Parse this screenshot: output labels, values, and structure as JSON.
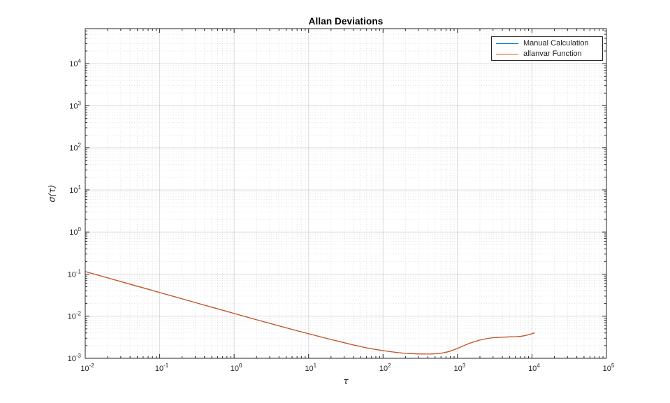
{
  "figure": {
    "background": "#ffffff",
    "axis_color": "#262626",
    "grid_major_color": "rgba(38,38,38,0.16)",
    "grid_minor_color": "rgba(38,38,38,0.13)"
  },
  "chart_data": {
    "type": "line",
    "title": "Allan Deviations",
    "xlabel": "τ",
    "ylabel": "σ(τ)",
    "xscale": "log",
    "yscale": "log",
    "xlim": [
      0.01,
      100000
    ],
    "ylim": [
      0.001,
      68000
    ],
    "x_tick_exponents": [
      -2,
      -1,
      0,
      1,
      2,
      3,
      4,
      5
    ],
    "y_tick_exponents": [
      -3,
      -2,
      -1,
      0,
      1,
      2,
      3,
      4
    ],
    "grid": true,
    "minor_grid": true,
    "legend": {
      "position": "northeast",
      "entries": [
        "Manual Calculation",
        "allanvar Function"
      ]
    },
    "series": [
      {
        "name": "Manual Calculation",
        "color": "#0072BD",
        "points": [
          [
            0.01,
            0.115
          ],
          [
            0.02,
            0.0815
          ],
          [
            0.04,
            0.0577
          ],
          [
            0.07,
            0.0437
          ],
          [
            0.1,
            0.0365
          ],
          [
            0.2,
            0.0259
          ],
          [
            0.4,
            0.0183
          ],
          [
            0.7,
            0.0139
          ],
          [
            1,
            0.0116
          ],
          [
            2,
            0.00825
          ],
          [
            4,
            0.00589
          ],
          [
            7,
            0.00452
          ],
          [
            10,
            0.00384
          ],
          [
            15,
            0.00318
          ],
          [
            20,
            0.0028
          ],
          [
            30,
            0.00235
          ],
          [
            40,
            0.00207
          ],
          [
            60,
            0.00177
          ],
          [
            80,
            0.00162
          ],
          [
            100,
            0.00152
          ],
          [
            150,
            0.00138
          ],
          [
            200,
            0.00131
          ],
          [
            300,
            0.00127
          ],
          [
            400,
            0.00126
          ],
          [
            500,
            0.00128
          ],
          [
            600,
            0.00132
          ],
          [
            700,
            0.00139
          ],
          [
            800,
            0.00148
          ],
          [
            1000,
            0.00172
          ],
          [
            1200,
            0.00198
          ],
          [
            1500,
            0.00232
          ],
          [
            2000,
            0.00272
          ],
          [
            2500,
            0.00295
          ],
          [
            3000,
            0.00308
          ],
          [
            4000,
            0.00318
          ],
          [
            5000,
            0.00322
          ],
          [
            6000,
            0.00326
          ],
          [
            7000,
            0.00332
          ],
          [
            8000,
            0.00345
          ],
          [
            9000,
            0.00363
          ],
          [
            10000,
            0.00385
          ],
          [
            10800,
            0.004
          ]
        ]
      },
      {
        "name": "allanvar Function",
        "color": "#D95319",
        "points": [
          [
            0.01,
            0.115
          ],
          [
            0.02,
            0.0815
          ],
          [
            0.04,
            0.0577
          ],
          [
            0.07,
            0.0437
          ],
          [
            0.1,
            0.0365
          ],
          [
            0.2,
            0.0259
          ],
          [
            0.4,
            0.0183
          ],
          [
            0.7,
            0.0139
          ],
          [
            1,
            0.0116
          ],
          [
            2,
            0.00825
          ],
          [
            4,
            0.00589
          ],
          [
            7,
            0.00452
          ],
          [
            10,
            0.00384
          ],
          [
            15,
            0.00318
          ],
          [
            20,
            0.0028
          ],
          [
            30,
            0.00235
          ],
          [
            40,
            0.00207
          ],
          [
            60,
            0.00177
          ],
          [
            80,
            0.00162
          ],
          [
            100,
            0.00152
          ],
          [
            150,
            0.00138
          ],
          [
            200,
            0.00131
          ],
          [
            300,
            0.00127
          ],
          [
            400,
            0.00126
          ],
          [
            500,
            0.00128
          ],
          [
            600,
            0.00132
          ],
          [
            700,
            0.00139
          ],
          [
            800,
            0.00148
          ],
          [
            1000,
            0.00172
          ],
          [
            1200,
            0.00198
          ],
          [
            1500,
            0.00232
          ],
          [
            2000,
            0.00272
          ],
          [
            2500,
            0.00295
          ],
          [
            3000,
            0.00308
          ],
          [
            4000,
            0.00318
          ],
          [
            5000,
            0.00322
          ],
          [
            6000,
            0.00326
          ],
          [
            7000,
            0.00332
          ],
          [
            8000,
            0.00345
          ],
          [
            9000,
            0.00363
          ],
          [
            10000,
            0.00385
          ],
          [
            10800,
            0.004
          ]
        ]
      }
    ]
  }
}
